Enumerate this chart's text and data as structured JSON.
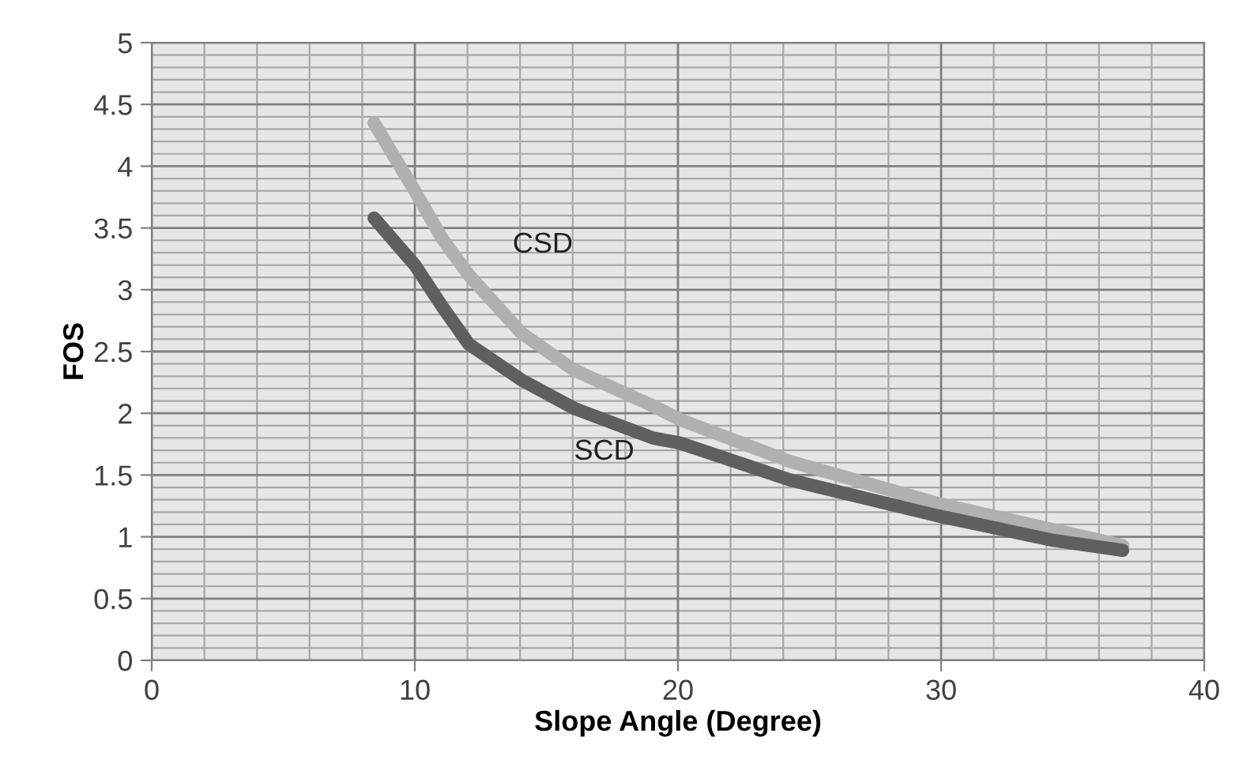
{
  "chart_data": {
    "type": "line",
    "xlabel": "Slope Angle (Degree)",
    "ylabel": "FOS",
    "xlim": [
      0,
      40
    ],
    "xticks": [
      0,
      10,
      20,
      30,
      40
    ],
    "ylim": [
      0,
      5
    ],
    "yticks": [
      0,
      {
        "value": 0.5,
        "label": "0.5"
      },
      1,
      {
        "value": 1.5,
        "label": "1.5"
      },
      2,
      {
        "value": 2.5,
        "label": "2.5"
      },
      3,
      {
        "value": 3.5,
        "label": "3.5"
      },
      4,
      {
        "value": 4.5,
        "label": "4.5"
      },
      5
    ],
    "grid": true,
    "legend": false,
    "marker": "none",
    "line_style": "solid",
    "series": [
      {
        "name": "CSD",
        "color": "#b0b0b0",
        "x": [
          8.45,
          10,
          11.05,
          12.05,
          14.05,
          16.05,
          19.05,
          20.06,
          24.26,
          29.87,
          36.9
        ],
        "values": [
          4.35,
          3.8,
          3.41,
          3.12,
          2.65,
          2.35,
          2.06,
          1.95,
          1.61,
          1.27,
          0.93
        ]
      },
      {
        "name": "SCD",
        "color": "#5f5f5f",
        "x": [
          8.45,
          10,
          11.05,
          12.05,
          14.05,
          16.05,
          19.05,
          20.06,
          24.26,
          29.87,
          34.3,
          36.9
        ],
        "values": [
          3.58,
          3.2,
          2.86,
          2.56,
          2.27,
          2.04,
          1.8,
          1.76,
          1.46,
          1.17,
          0.97,
          0.89
        ]
      }
    ]
  }
}
